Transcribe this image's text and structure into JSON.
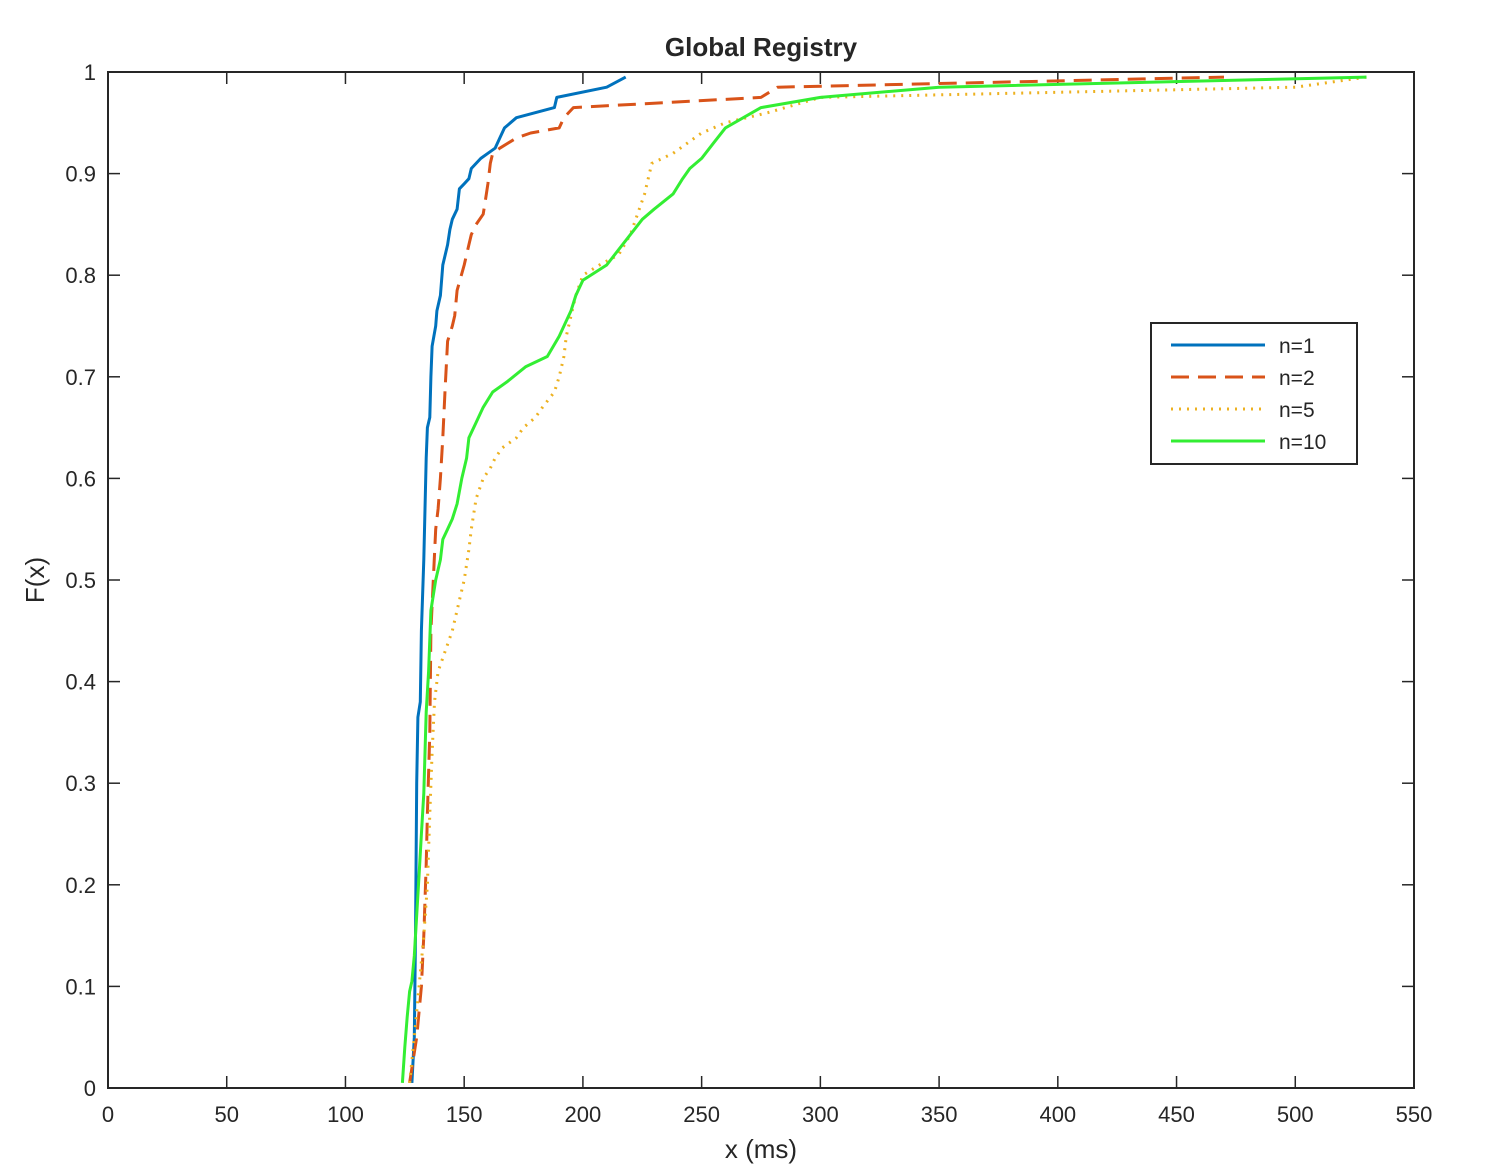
{
  "chart_data": {
    "type": "line",
    "title": "Global Registry",
    "xlabel": "x (ms)",
    "ylabel": "F(x)",
    "xlim": [
      0,
      550
    ],
    "ylim": [
      0,
      1
    ],
    "xticks": [
      0,
      50,
      100,
      150,
      200,
      250,
      300,
      350,
      400,
      450,
      500,
      550
    ],
    "yticks": [
      0,
      0.1,
      0.2,
      0.3,
      0.4,
      0.5,
      0.6,
      0.7,
      0.8,
      0.9,
      1
    ],
    "xtick_labels": [
      "0",
      "50",
      "100",
      "150",
      "200",
      "250",
      "300",
      "350",
      "400",
      "450",
      "500",
      "550"
    ],
    "ytick_labels": [
      "0",
      "0.1",
      "0.2",
      "0.3",
      "0.4",
      "0.5",
      "0.6",
      "0.7",
      "0.8",
      "0.9",
      "1"
    ],
    "grid": false,
    "legend_position": "right",
    "series": [
      {
        "name": "n=1",
        "color": "#0072BD",
        "dash": "solid",
        "points": [
          [
            128,
            0.005
          ],
          [
            129,
            0.05
          ],
          [
            129.5,
            0.15
          ],
          [
            130,
            0.3
          ],
          [
            130.5,
            0.365
          ],
          [
            131.5,
            0.38
          ],
          [
            132,
            0.45
          ],
          [
            133,
            0.52
          ],
          [
            133.5,
            0.57
          ],
          [
            134,
            0.62
          ],
          [
            134.5,
            0.65
          ],
          [
            135.5,
            0.66
          ],
          [
            136,
            0.7
          ],
          [
            136.5,
            0.73
          ],
          [
            138,
            0.75
          ],
          [
            138.5,
            0.765
          ],
          [
            140,
            0.78
          ],
          [
            141,
            0.81
          ],
          [
            142,
            0.82
          ],
          [
            143,
            0.83
          ],
          [
            144,
            0.845
          ],
          [
            145,
            0.855
          ],
          [
            147,
            0.865
          ],
          [
            148,
            0.885
          ],
          [
            150,
            0.89
          ],
          [
            152,
            0.895
          ],
          [
            153,
            0.905
          ],
          [
            155,
            0.91
          ],
          [
            157,
            0.915
          ],
          [
            160,
            0.92
          ],
          [
            163,
            0.925
          ],
          [
            165,
            0.935
          ],
          [
            167,
            0.945
          ],
          [
            172,
            0.955
          ],
          [
            188,
            0.965
          ],
          [
            189,
            0.975
          ],
          [
            210,
            0.985
          ],
          [
            218,
            0.995
          ]
        ]
      },
      {
        "name": "n=2",
        "color": "#D95319",
        "dash": "dashed",
        "points": [
          [
            127,
            0.005
          ],
          [
            130,
            0.05
          ],
          [
            132,
            0.1
          ],
          [
            133,
            0.15
          ],
          [
            134,
            0.22
          ],
          [
            134.5,
            0.27
          ],
          [
            135.5,
            0.35
          ],
          [
            136,
            0.45
          ],
          [
            137,
            0.5
          ],
          [
            138,
            0.55
          ],
          [
            139,
            0.57
          ],
          [
            140,
            0.6
          ],
          [
            141,
            0.64
          ],
          [
            142,
            0.69
          ],
          [
            143,
            0.735
          ],
          [
            145,
            0.75
          ],
          [
            146,
            0.76
          ],
          [
            147,
            0.785
          ],
          [
            150,
            0.81
          ],
          [
            152,
            0.83
          ],
          [
            153,
            0.84
          ],
          [
            155,
            0.85
          ],
          [
            158,
            0.86
          ],
          [
            159,
            0.875
          ],
          [
            160,
            0.89
          ],
          [
            161,
            0.91
          ],
          [
            162,
            0.92
          ],
          [
            165,
            0.925
          ],
          [
            172,
            0.935
          ],
          [
            178,
            0.94
          ],
          [
            190,
            0.945
          ],
          [
            192,
            0.955
          ],
          [
            196,
            0.965
          ],
          [
            275,
            0.975
          ],
          [
            282,
            0.985
          ],
          [
            470,
            0.995
          ]
        ]
      },
      {
        "name": "n=5",
        "color": "#EDB120",
        "dash": "dotted",
        "points": [
          [
            127,
            0.005
          ],
          [
            129,
            0.05
          ],
          [
            131,
            0.1
          ],
          [
            133,
            0.15
          ],
          [
            134.5,
            0.2
          ],
          [
            135.5,
            0.27
          ],
          [
            136.5,
            0.33
          ],
          [
            137.5,
            0.38
          ],
          [
            139,
            0.41
          ],
          [
            142,
            0.43
          ],
          [
            145,
            0.45
          ],
          [
            148,
            0.48
          ],
          [
            150,
            0.5
          ],
          [
            152,
            0.53
          ],
          [
            153,
            0.55
          ],
          [
            155,
            0.58
          ],
          [
            158,
            0.6
          ],
          [
            161,
            0.61
          ],
          [
            163,
            0.62
          ],
          [
            166,
            0.63
          ],
          [
            172,
            0.64
          ],
          [
            175,
            0.65
          ],
          [
            180,
            0.66
          ],
          [
            183,
            0.67
          ],
          [
            188,
            0.685
          ],
          [
            190,
            0.7
          ],
          [
            192,
            0.72
          ],
          [
            193,
            0.74
          ],
          [
            195,
            0.76
          ],
          [
            197,
            0.78
          ],
          [
            200,
            0.8
          ],
          [
            207,
            0.81
          ],
          [
            215,
            0.82
          ],
          [
            220,
            0.84
          ],
          [
            223,
            0.86
          ],
          [
            226,
            0.88
          ],
          [
            229,
            0.91
          ],
          [
            238,
            0.92
          ],
          [
            244,
            0.93
          ],
          [
            250,
            0.94
          ],
          [
            260,
            0.95
          ],
          [
            278,
            0.96
          ],
          [
            300,
            0.975
          ],
          [
            500,
            0.985
          ],
          [
            530,
            0.995
          ]
        ]
      },
      {
        "name": "n=10",
        "color": "#33EE33",
        "dash": "solid",
        "points": [
          [
            124,
            0.005
          ],
          [
            125,
            0.04
          ],
          [
            126,
            0.07
          ],
          [
            127,
            0.095
          ],
          [
            128,
            0.105
          ],
          [
            129,
            0.13
          ],
          [
            130,
            0.17
          ],
          [
            131,
            0.21
          ],
          [
            132,
            0.25
          ],
          [
            133,
            0.29
          ],
          [
            133.5,
            0.33
          ],
          [
            134,
            0.37
          ],
          [
            135,
            0.41
          ],
          [
            136,
            0.47
          ],
          [
            138,
            0.5
          ],
          [
            140,
            0.52
          ],
          [
            141,
            0.54
          ],
          [
            143,
            0.55
          ],
          [
            145,
            0.56
          ],
          [
            147,
            0.575
          ],
          [
            149,
            0.6
          ],
          [
            151,
            0.62
          ],
          [
            152,
            0.64
          ],
          [
            155,
            0.655
          ],
          [
            158,
            0.67
          ],
          [
            162,
            0.685
          ],
          [
            168,
            0.695
          ],
          [
            176,
            0.71
          ],
          [
            185,
            0.72
          ],
          [
            190,
            0.74
          ],
          [
            193,
            0.755
          ],
          [
            195,
            0.765
          ],
          [
            197,
            0.78
          ],
          [
            200,
            0.795
          ],
          [
            210,
            0.81
          ],
          [
            215,
            0.825
          ],
          [
            220,
            0.84
          ],
          [
            225,
            0.855
          ],
          [
            230,
            0.865
          ],
          [
            238,
            0.88
          ],
          [
            242,
            0.895
          ],
          [
            245,
            0.905
          ],
          [
            250,
            0.915
          ],
          [
            255,
            0.93
          ],
          [
            260,
            0.945
          ],
          [
            275,
            0.965
          ],
          [
            300,
            0.975
          ],
          [
            350,
            0.985
          ],
          [
            530,
            0.995
          ]
        ]
      }
    ]
  }
}
